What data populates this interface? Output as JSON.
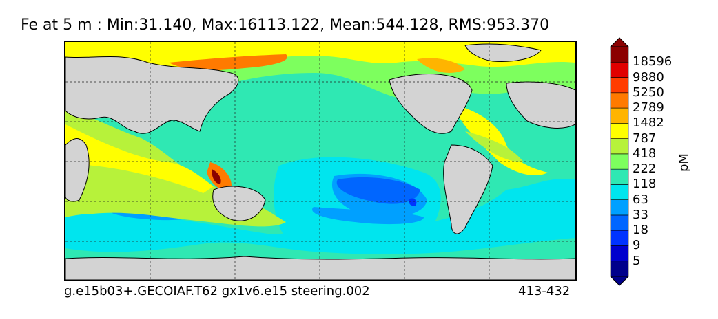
{
  "title": "Fe at 5 m : Min:31.140, Max:16113.122, Mean:544.128, RMS:953.370",
  "footer": {
    "case_name": "g.e15b03+.GECOIAF.T62 gx1v6.e15 steering.002",
    "years": "413-432"
  },
  "colorbar": {
    "unit": "pM",
    "labels": [
      "18596",
      "9880",
      "5250",
      "2789",
      "1482",
      "787",
      "418",
      "222",
      "118",
      "63",
      "33",
      "18",
      "9",
      "5"
    ],
    "colors_bottom_to_top": [
      "#00008b",
      "#0000cd",
      "#0033ff",
      "#0066ff",
      "#00a0ff",
      "#00e5ee",
      "#2fe8b3",
      "#7dff5e",
      "#b7f23a",
      "#ffff00",
      "#ffb400",
      "#ff7a00",
      "#ff3c00",
      "#e00000",
      "#8b0000"
    ],
    "land_color": "#d3d3d3"
  }
}
